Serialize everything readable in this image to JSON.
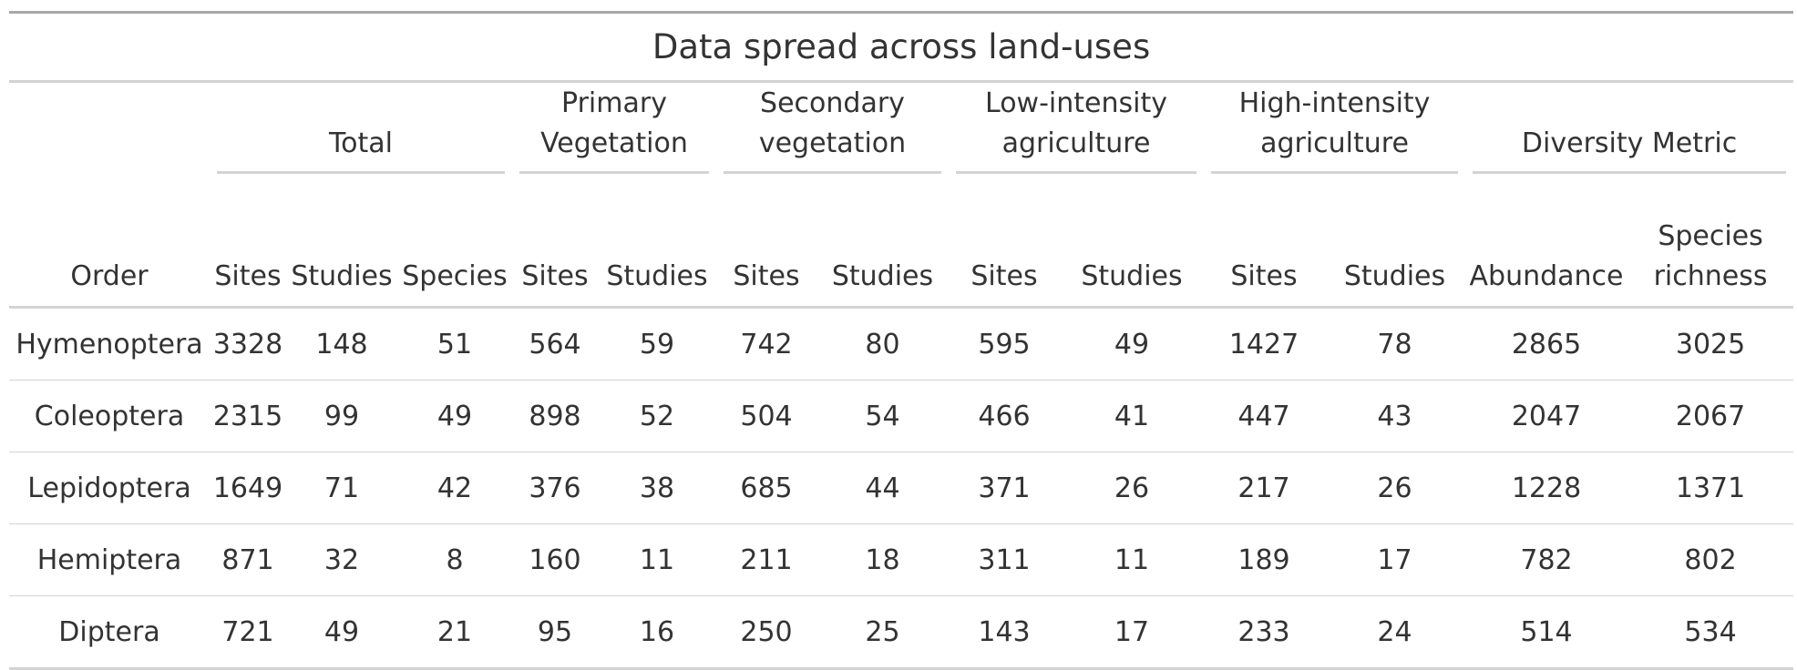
{
  "table": {
    "title": "Data spread across land-uses",
    "spanners": [
      "Total",
      "Primary Vegetation",
      "Secondary vegetation",
      "Low-intensity agriculture",
      "High-intensity agriculture",
      "Diversity Metric"
    ],
    "columns": [
      "Order",
      "Sites",
      "Studies",
      "Species",
      "Sites",
      "Studies",
      "Sites",
      "Studies",
      "Sites",
      "Studies",
      "Sites",
      "Studies",
      "Abundance",
      "Species richness"
    ],
    "rows": [
      [
        "Hymenoptera",
        "3328",
        "148",
        "51",
        "564",
        "59",
        "742",
        "80",
        "595",
        "49",
        "1427",
        "78",
        "2865",
        "3025"
      ],
      [
        "Coleoptera",
        "2315",
        "99",
        "49",
        "898",
        "52",
        "504",
        "54",
        "466",
        "41",
        "447",
        "43",
        "2047",
        "2067"
      ],
      [
        "Lepidoptera",
        "1649",
        "71",
        "42",
        "376",
        "38",
        "685",
        "44",
        "371",
        "26",
        "217",
        "26",
        "1228",
        "1371"
      ],
      [
        "Hemiptera",
        "871",
        "32",
        "8",
        "160",
        "11",
        "211",
        "18",
        "311",
        "11",
        "189",
        "17",
        "782",
        "802"
      ],
      [
        "Diptera",
        "721",
        "49",
        "21",
        "95",
        "16",
        "250",
        "25",
        "143",
        "17",
        "233",
        "24",
        "514",
        "534"
      ]
    ]
  }
}
